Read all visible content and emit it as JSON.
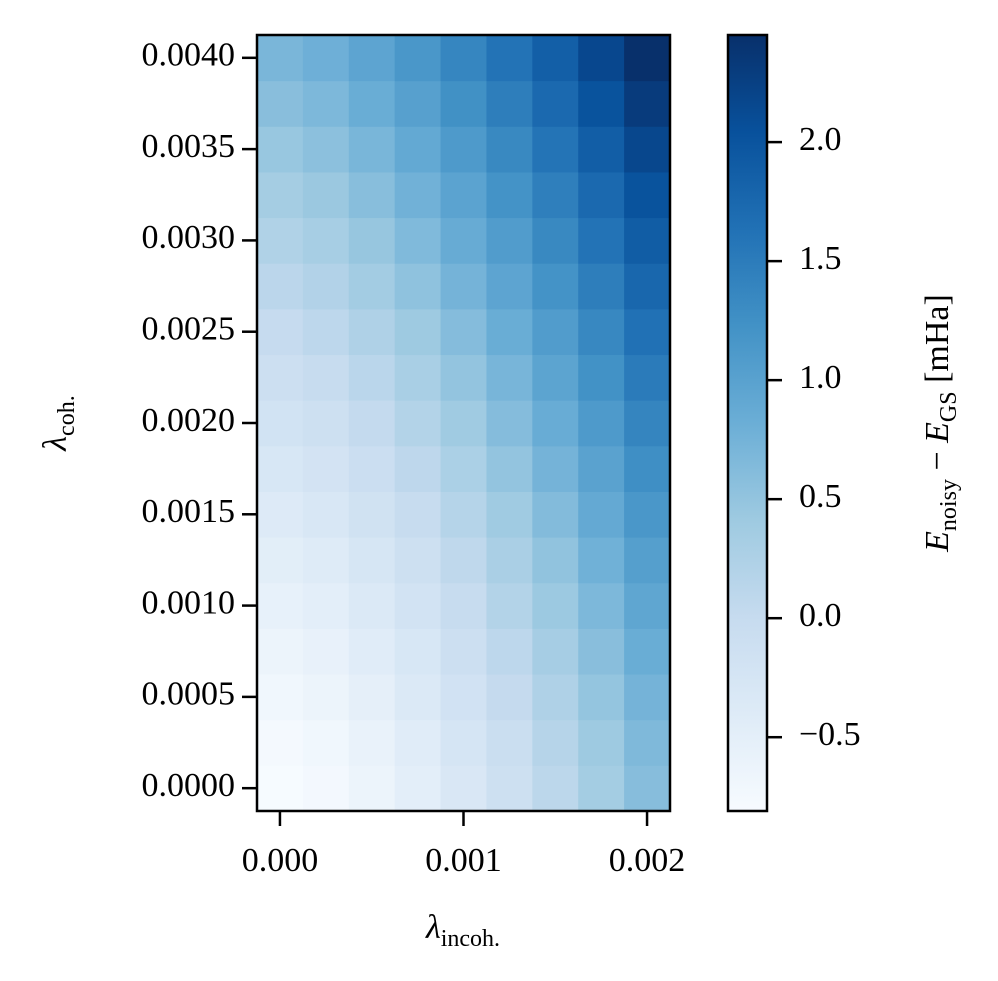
{
  "chart_data": {
    "type": "heatmap",
    "xlabel": {
      "main": "λ",
      "sub": "incoh."
    },
    "ylabel": {
      "main": "λ",
      "sub": "coh."
    },
    "colorbar_label": [
      {
        "text": "E",
        "italic": true
      },
      {
        "text": "noisy",
        "sub": true
      },
      {
        "text": " − "
      },
      {
        "text": "E",
        "italic": true
      },
      {
        "text": "GS",
        "sub": true
      },
      {
        "text": " [mHa]"
      }
    ],
    "x": [
      0,
      0.00025,
      0.0005,
      0.00075,
      0.001,
      0.00125,
      0.0015,
      0.00175,
      0.002
    ],
    "y": [
      0,
      0.00025,
      0.0005,
      0.00075,
      0.001,
      0.00125,
      0.0015,
      0.00175,
      0.002,
      0.00225,
      0.0025,
      0.00275,
      0.003,
      0.00325,
      0.0035,
      0.00375,
      0.004
    ],
    "values": [
      [
        -0.8,
        -0.74,
        -0.63,
        -0.48,
        -0.31,
        -0.11,
        0.11,
        0.35,
        0.6
      ],
      [
        -0.76,
        -0.7,
        -0.58,
        -0.43,
        -0.25,
        -0.06,
        0.17,
        0.41,
        0.66
      ],
      [
        -0.7,
        -0.63,
        -0.51,
        -0.36,
        -0.18,
        0.02,
        0.24,
        0.49,
        0.74
      ],
      [
        -0.63,
        -0.56,
        -0.44,
        -0.29,
        -0.1,
        0.1,
        0.33,
        0.58,
        0.84
      ],
      [
        -0.55,
        -0.48,
        -0.35,
        -0.2,
        -0.01,
        0.2,
        0.43,
        0.68,
        0.94
      ],
      [
        -0.47,
        -0.4,
        -0.27,
        -0.11,
        0.08,
        0.29,
        0.52,
        0.78,
        1.04
      ],
      [
        -0.38,
        -0.3,
        -0.17,
        -0.01,
        0.18,
        0.39,
        0.63,
        0.89,
        1.15
      ],
      [
        -0.29,
        -0.21,
        -0.08,
        0.09,
        0.28,
        0.5,
        0.74,
        0.99,
        1.26
      ],
      [
        -0.19,
        -0.11,
        0.03,
        0.2,
        0.39,
        0.61,
        0.85,
        1.11,
        1.39
      ],
      [
        -0.09,
        -0.01,
        0.13,
        0.3,
        0.5,
        0.72,
        0.97,
        1.23,
        1.51
      ],
      [
        0.01,
        0.1,
        0.24,
        0.41,
        0.61,
        0.84,
        1.08,
        1.35,
        1.63
      ],
      [
        0.12,
        0.21,
        0.36,
        0.53,
        0.74,
        0.96,
        1.21,
        1.48,
        1.76
      ],
      [
        0.23,
        0.32,
        0.47,
        0.65,
        0.86,
        1.08,
        1.34,
        1.61,
        1.89
      ],
      [
        0.34,
        0.44,
        0.59,
        0.77,
        0.98,
        1.21,
        1.46,
        1.74,
        2.02
      ],
      [
        0.46,
        0.56,
        0.71,
        0.9,
        1.11,
        1.34,
        1.6,
        1.88,
        2.17
      ],
      [
        0.58,
        0.68,
        0.84,
        1.02,
        1.24,
        1.48,
        1.74,
        2.02,
        2.31
      ],
      [
        0.7,
        0.8,
        0.96,
        1.15,
        1.37,
        1.61,
        1.87,
        2.16,
        2.45
      ]
    ],
    "xlim": [
      -0.000125,
      0.002125
    ],
    "xticks": [
      {
        "value": 0,
        "label": "0.000"
      },
      {
        "value": 0.001,
        "label": "0.001"
      },
      {
        "value": 0.002,
        "label": "0.002"
      }
    ],
    "ylim": [
      -0.000125,
      0.004125
    ],
    "yticks": [
      {
        "value": 0,
        "label": "0.0000"
      },
      {
        "value": 0.0005,
        "label": "0.0005"
      },
      {
        "value": 0.001,
        "label": "0.0010"
      },
      {
        "value": 0.0015,
        "label": "0.0015"
      },
      {
        "value": 0.002,
        "label": "0.0020"
      },
      {
        "value": 0.0025,
        "label": "0.0025"
      },
      {
        "value": 0.003,
        "label": "0.0030"
      },
      {
        "value": 0.0035,
        "label": "0.0035"
      },
      {
        "value": 0.004,
        "label": "0.0040"
      }
    ],
    "clim": [
      -0.81,
      2.45
    ],
    "cticks": [
      {
        "value": -0.5,
        "label": "−0.5"
      },
      {
        "value": 0,
        "label": "0.0"
      },
      0.5,
      {
        "value": 1,
        "label": "1.0"
      },
      1.5,
      {
        "value": 2,
        "label": "2.0"
      }
    ],
    "colormap_colors": [
      "#f7fbff",
      "#deebf7",
      "#c6dbef",
      "#9ecae1",
      "#6baed6",
      "#4292c6",
      "#2171b5",
      "#08519c",
      "#08306b"
    ]
  }
}
